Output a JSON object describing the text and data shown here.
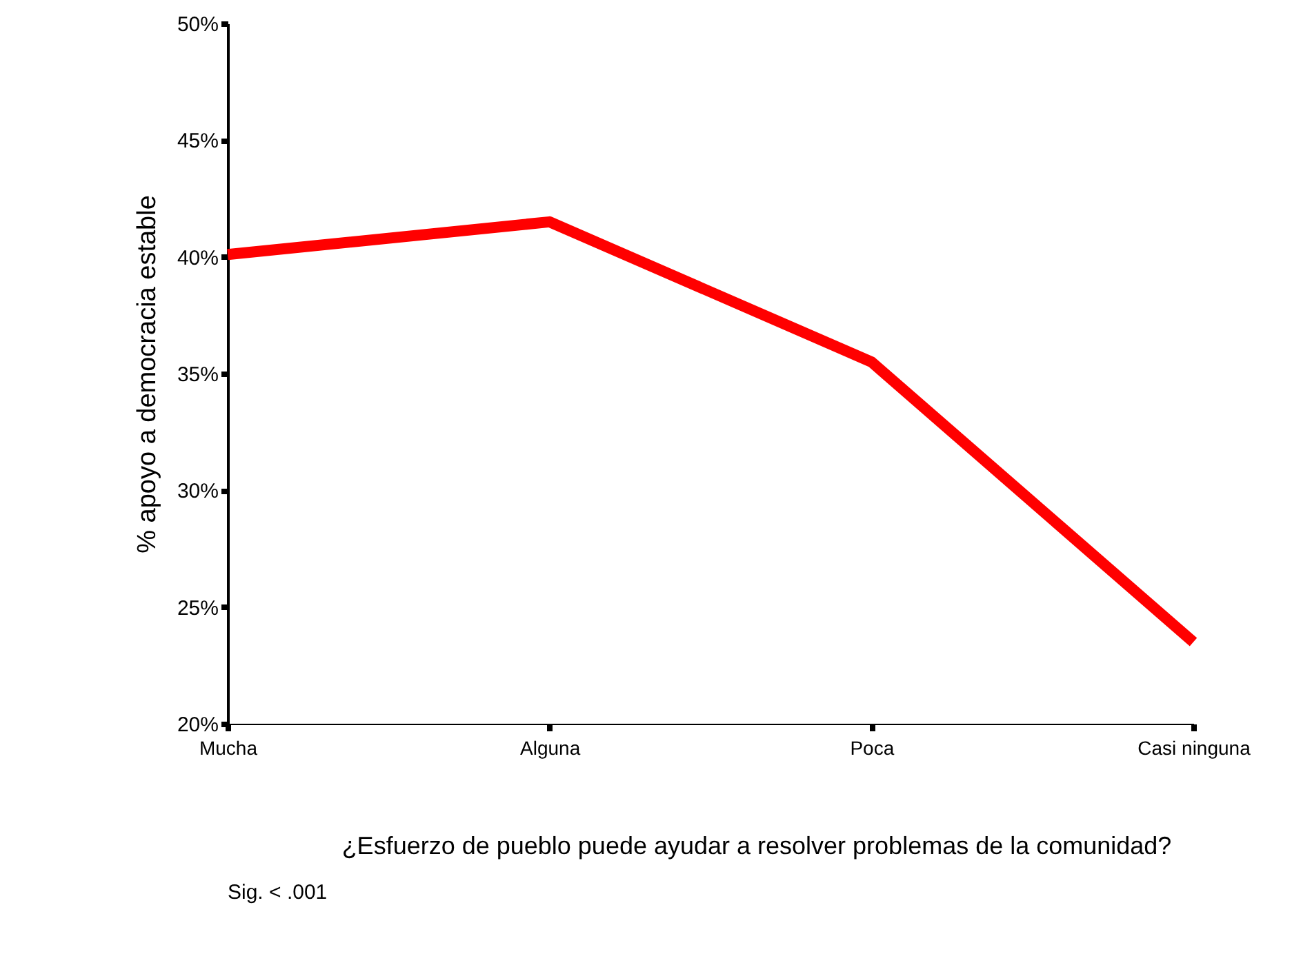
{
  "chart_data": {
    "type": "line",
    "xlabel": "¿Esfuerzo de pueblo puede ayudar a resolver problemas de la comunidad?",
    "ylabel": "% apoyo a democracia estable",
    "categories": [
      "Mucha",
      "Alguna",
      "Poca",
      "Casi ninguna"
    ],
    "series": [
      {
        "color": "#ff0000",
        "values": [
          40.1,
          41.5,
          35.5,
          23.5
        ]
      }
    ],
    "ylim": [
      20,
      50
    ],
    "yticks": [
      {
        "value": 20,
        "label": "20%"
      },
      {
        "value": 25,
        "label": "25%"
      },
      {
        "value": 30,
        "label": "30%"
      },
      {
        "value": 35,
        "label": "35%"
      },
      {
        "value": 40,
        "label": "40%"
      },
      {
        "value": 45,
        "label": "45%"
      },
      {
        "value": 50,
        "label": "50%"
      }
    ],
    "grid": false,
    "marker": "none",
    "line_style": "solid",
    "annotations": [
      "Sig. < .001"
    ]
  }
}
